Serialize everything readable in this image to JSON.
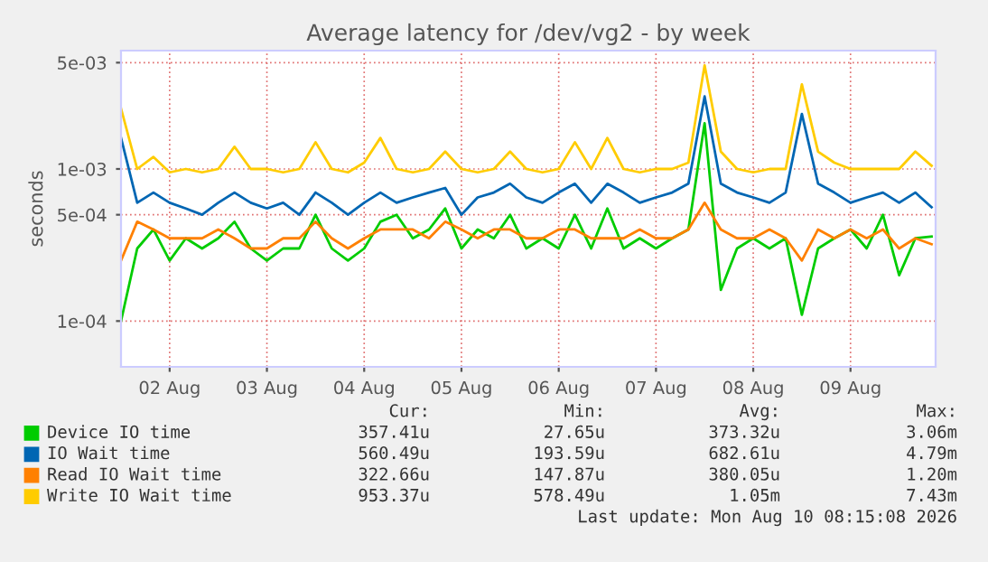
{
  "chart_data": {
    "type": "line",
    "title": "Average latency for /dev/vg2 - by week",
    "ylabel": "seconds",
    "log": "y",
    "ylim": [
      5e-05,
      0.006
    ],
    "yticks": [
      {
        "value": 0.0001,
        "label": "1e-04"
      },
      {
        "value": 0.0005,
        "label": "5e-04"
      },
      {
        "value": 0.001,
        "label": "1e-03"
      },
      {
        "value": 0.005,
        "label": "5e-03"
      }
    ],
    "xlim": [
      "2026-08-02T00:00",
      "2026-08-10T09:00"
    ],
    "xticks": [
      {
        "value": "2026-08-02T12:00",
        "label": "02 Aug"
      },
      {
        "value": "2026-08-03T12:00",
        "label": "03 Aug"
      },
      {
        "value": "2026-08-04T12:00",
        "label": "04 Aug"
      },
      {
        "value": "2026-08-05T12:00",
        "label": "05 Aug"
      },
      {
        "value": "2026-08-06T12:00",
        "label": "06 Aug"
      },
      {
        "value": "2026-08-07T12:00",
        "label": "07 Aug"
      },
      {
        "value": "2026-08-08T12:00",
        "label": "08 Aug"
      },
      {
        "value": "2026-08-09T12:00",
        "label": "09 Aug"
      }
    ],
    "grid": true,
    "legend": "bottom",
    "x": [
      "2026-08-02T00:00",
      "2026-08-02T04:00",
      "2026-08-02T08:00",
      "2026-08-02T12:00",
      "2026-08-02T16:00",
      "2026-08-02T20:00",
      "2026-08-03T00:00",
      "2026-08-03T04:00",
      "2026-08-03T08:00",
      "2026-08-03T12:00",
      "2026-08-03T16:00",
      "2026-08-03T20:00",
      "2026-08-04T00:00",
      "2026-08-04T04:00",
      "2026-08-04T08:00",
      "2026-08-04T12:00",
      "2026-08-04T16:00",
      "2026-08-04T20:00",
      "2026-08-05T00:00",
      "2026-08-05T04:00",
      "2026-08-05T08:00",
      "2026-08-05T12:00",
      "2026-08-05T16:00",
      "2026-08-05T20:00",
      "2026-08-06T00:00",
      "2026-08-06T04:00",
      "2026-08-06T08:00",
      "2026-08-06T12:00",
      "2026-08-06T16:00",
      "2026-08-06T20:00",
      "2026-08-07T00:00",
      "2026-08-07T04:00",
      "2026-08-07T08:00",
      "2026-08-07T12:00",
      "2026-08-07T16:00",
      "2026-08-07T20:00",
      "2026-08-08T00:00",
      "2026-08-08T04:00",
      "2026-08-08T08:00",
      "2026-08-08T12:00",
      "2026-08-08T16:00",
      "2026-08-08T20:00",
      "2026-08-09T00:00",
      "2026-08-09T04:00",
      "2026-08-09T08:00",
      "2026-08-09T12:00",
      "2026-08-09T16:00",
      "2026-08-09T20:00",
      "2026-08-10T00:00",
      "2026-08-10T04:00",
      "2026-08-10T08:00"
    ],
    "series": [
      {
        "name": "Device IO time",
        "color": "#00cc00",
        "values": [
          0.0001,
          0.0003,
          0.0004,
          0.00025,
          0.00035,
          0.0003,
          0.00035,
          0.00045,
          0.0003,
          0.00025,
          0.0003,
          0.0003,
          0.0005,
          0.0003,
          0.00025,
          0.0003,
          0.00045,
          0.0005,
          0.00035,
          0.0004,
          0.00055,
          0.0003,
          0.0004,
          0.00035,
          0.0005,
          0.0003,
          0.00035,
          0.0003,
          0.0005,
          0.0003,
          0.00055,
          0.0003,
          0.00035,
          0.0003,
          0.00035,
          0.0004,
          0.002,
          0.00016,
          0.0003,
          0.00035,
          0.0003,
          0.00035,
          0.00011,
          0.0003,
          0.00035,
          0.0004,
          0.0003,
          0.0005,
          0.0002,
          0.00035,
          0.00036
        ]
      },
      {
        "name": "IO Wait time",
        "color": "#0066b3",
        "values": [
          0.0016,
          0.0006,
          0.0007,
          0.0006,
          0.00055,
          0.0005,
          0.0006,
          0.0007,
          0.0006,
          0.00055,
          0.0006,
          0.0005,
          0.0007,
          0.0006,
          0.0005,
          0.0006,
          0.0007,
          0.0006,
          0.00065,
          0.0007,
          0.00075,
          0.0005,
          0.00065,
          0.0007,
          0.0008,
          0.00065,
          0.0006,
          0.0007,
          0.0008,
          0.0006,
          0.0008,
          0.0007,
          0.0006,
          0.00065,
          0.0007,
          0.0008,
          0.003,
          0.0008,
          0.0007,
          0.00065,
          0.0006,
          0.0007,
          0.0023,
          0.0008,
          0.0007,
          0.0006,
          0.00065,
          0.0007,
          0.0006,
          0.0007,
          0.00056
        ]
      },
      {
        "name": "Read IO Wait time",
        "color": "#ff8000",
        "values": [
          0.00025,
          0.00045,
          0.0004,
          0.00035,
          0.00035,
          0.00035,
          0.0004,
          0.00035,
          0.0003,
          0.0003,
          0.00035,
          0.00035,
          0.00045,
          0.00035,
          0.0003,
          0.00035,
          0.0004,
          0.0004,
          0.0004,
          0.00035,
          0.00045,
          0.0004,
          0.00035,
          0.0004,
          0.0004,
          0.00035,
          0.00035,
          0.0004,
          0.0004,
          0.00035,
          0.00035,
          0.00035,
          0.0004,
          0.00035,
          0.00035,
          0.0004,
          0.0006,
          0.0004,
          0.00035,
          0.00035,
          0.0004,
          0.00035,
          0.00025,
          0.0004,
          0.00035,
          0.0004,
          0.00035,
          0.0004,
          0.0003,
          0.00035,
          0.00032
        ]
      },
      {
        "name": "Write IO Wait time",
        "color": "#ffcc00",
        "values": [
          0.0025,
          0.001,
          0.0012,
          0.00095,
          0.001,
          0.00095,
          0.001,
          0.0014,
          0.001,
          0.001,
          0.00095,
          0.001,
          0.0015,
          0.001,
          0.00095,
          0.0011,
          0.0016,
          0.001,
          0.00095,
          0.001,
          0.0013,
          0.001,
          0.00095,
          0.001,
          0.0013,
          0.001,
          0.00095,
          0.001,
          0.0015,
          0.001,
          0.0016,
          0.001,
          0.00095,
          0.001,
          0.001,
          0.0011,
          0.0048,
          0.0013,
          0.001,
          0.00095,
          0.001,
          0.001,
          0.0036,
          0.0013,
          0.0011,
          0.001,
          0.001,
          0.001,
          0.001,
          0.0013,
          0.00105
        ]
      }
    ],
    "annotations": [
      "Cur:",
      "Min:",
      "Avg:",
      "Max:",
      "357.41u",
      "27.65u",
      "373.32u",
      "3.06m",
      "560.49u",
      "193.59u",
      "682.61u",
      "4.79m",
      "322.66u",
      "147.87u",
      "380.05u",
      "1.20m",
      "953.37u",
      "578.49u",
      "1.05m",
      "7.43m",
      "Last update: Mon Aug 10 08:15:08 2026"
    ]
  }
}
